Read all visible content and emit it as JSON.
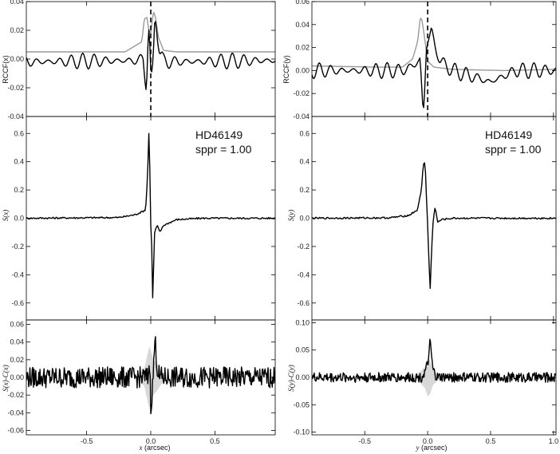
{
  "figure": {
    "left": {
      "target": "HD46149",
      "sppr": "sppr = 1.00",
      "x_label_var": "x",
      "x_label_unit": "(arcsec)",
      "x_ticks": [
        "-0.5",
        "0.0",
        "0.5"
      ],
      "top_ylabel": "RCCF(x)",
      "mid_ylabel": "S(x)",
      "bot_ylabel": "S(x)-C(x)"
    },
    "right": {
      "target": "HD46149",
      "sppr": "sppr = 1.00",
      "x_label_var": "y",
      "x_label_unit": "(arcsec)",
      "x_ticks": [
        "-0.5",
        "0.0",
        "0.5",
        "1.0"
      ],
      "top_ylabel": "RCCF(y)",
      "mid_ylabel": "S(y)",
      "bot_ylabel": "S(y)-C(y)"
    }
  },
  "chart_data": [
    {
      "id": "left-top",
      "type": "line",
      "ylabel": "RCCF(x)",
      "xlim": [
        -0.97,
        0.97
      ],
      "ylim": [
        -0.04,
        0.04
      ],
      "yticks": [
        "0.04",
        "0.02",
        "0.00",
        "-0.02",
        "-0.04"
      ],
      "vline_x": 0.0,
      "series": [
        {
          "color": "#999999",
          "shape": [
            [
              -0.97,
              0.005
            ],
            [
              -0.35,
              0.005
            ],
            [
              -0.2,
              0.005
            ],
            [
              -0.07,
              0.012
            ],
            [
              -0.05,
              0.028
            ],
            [
              -0.03,
              0.029
            ],
            [
              -0.015,
              0.02
            ],
            [
              0.0,
              0.018
            ],
            [
              0.02,
              0.033
            ],
            [
              0.035,
              0.03
            ],
            [
              0.06,
              0.015
            ],
            [
              0.1,
              0.006
            ],
            [
              0.2,
              0.005
            ],
            [
              0.97,
              0.005
            ]
          ]
        },
        {
          "color": "#000000",
          "shape": [
            [
              -0.97,
              -0.002
            ],
            [
              -0.1,
              -0.001
            ],
            [
              -0.06,
              0.0
            ],
            [
              -0.045,
              -0.012
            ],
            [
              -0.035,
              -0.018
            ],
            [
              -0.03,
              -0.008
            ],
            [
              -0.02,
              0.018
            ],
            [
              -0.012,
              0.022
            ],
            [
              -0.005,
              0.0
            ],
            [
              0.0,
              -0.012
            ],
            [
              0.01,
              -0.015
            ],
            [
              0.02,
              0.0
            ],
            [
              0.03,
              0.025
            ],
            [
              0.04,
              0.03
            ],
            [
              0.05,
              0.02
            ],
            [
              0.07,
              0.005
            ],
            [
              0.1,
              -0.002
            ],
            [
              0.97,
              -0.001
            ]
          ]
        }
      ]
    },
    {
      "id": "left-mid",
      "type": "line",
      "ylabel": "S(x)",
      "xlim": [
        -0.97,
        0.97
      ],
      "ylim": [
        -0.72,
        0.72
      ],
      "yticks": [
        "0.6",
        "0.4",
        "0.2",
        "0.0",
        "-0.2",
        "-0.4",
        "-0.6"
      ],
      "series": [
        {
          "color": "#000000",
          "shape": [
            [
              -0.97,
              0.0
            ],
            [
              -0.25,
              0.005
            ],
            [
              -0.12,
              0.025
            ],
            [
              -0.06,
              0.05
            ],
            [
              -0.04,
              0.06
            ],
            [
              -0.025,
              0.3
            ],
            [
              -0.015,
              0.6
            ],
            [
              -0.008,
              0.4
            ],
            [
              -0.003,
              0.0
            ],
            [
              0.0,
              -0.05
            ],
            [
              0.01,
              -0.25
            ],
            [
              0.015,
              -0.57
            ],
            [
              0.022,
              -0.35
            ],
            [
              0.03,
              -0.1
            ],
            [
              0.05,
              -0.05
            ],
            [
              0.07,
              -0.1
            ],
            [
              0.1,
              -0.05
            ],
            [
              0.2,
              -0.01
            ],
            [
              0.4,
              0.0
            ],
            [
              0.97,
              0.0
            ]
          ]
        }
      ]
    },
    {
      "id": "left-bot",
      "type": "line",
      "ylabel": "S(x)-C(x)",
      "xlim": [
        -0.97,
        0.97
      ],
      "ylim": [
        -0.065,
        0.065
      ],
      "yticks": [
        "0.06",
        "0.04",
        "0.02",
        "0.00",
        "-0.02",
        "-0.04",
        "-0.06"
      ],
      "band": {
        "color": "#d8d8d8",
        "shape": [
          [
            -0.1,
            0.003
          ],
          [
            -0.05,
            0.01
          ],
          [
            -0.02,
            0.03
          ],
          [
            -0.01,
            0.035
          ],
          [
            0.0,
            0.03
          ],
          [
            0.02,
            0.02
          ],
          [
            0.05,
            0.015
          ],
          [
            0.08,
            0.008
          ],
          [
            0.12,
            0.003
          ]
        ]
      },
      "noise_amp": 0.012,
      "series": [
        {
          "color": "#000000",
          "shape": [
            [
              -0.97,
              0.0
            ],
            [
              -0.02,
              0.0
            ],
            [
              -0.01,
              0.02
            ],
            [
              0.0,
              -0.03
            ],
            [
              0.01,
              -0.02
            ],
            [
              0.02,
              0.005
            ],
            [
              0.03,
              0.04
            ],
            [
              0.04,
              0.035
            ],
            [
              0.05,
              0.01
            ],
            [
              0.07,
              0.0
            ],
            [
              0.97,
              0.0
            ]
          ]
        }
      ]
    },
    {
      "id": "right-top",
      "type": "line",
      "ylabel": "RCCF(y)",
      "xlim": [
        -0.92,
        1.02
      ],
      "ylim": [
        -0.04,
        0.06
      ],
      "yticks": [
        "0.06",
        "0.04",
        "0.02",
        "0.00",
        "-0.02",
        "-0.04"
      ],
      "vline_x": 0.0,
      "series": [
        {
          "color": "#999999",
          "shape": [
            [
              -0.92,
              0.004
            ],
            [
              -0.4,
              0.003
            ],
            [
              -0.2,
              0.003
            ],
            [
              -0.12,
              0.01
            ],
            [
              -0.08,
              0.025
            ],
            [
              -0.06,
              0.045
            ],
            [
              -0.05,
              0.046
            ],
            [
              -0.04,
              0.04
            ],
            [
              -0.02,
              0.025
            ],
            [
              0.0,
              0.008
            ],
            [
              0.05,
              0.003
            ],
            [
              0.2,
              0.001
            ],
            [
              0.6,
              0.0
            ],
            [
              1.02,
              0.001
            ]
          ]
        },
        {
          "color": "#000000",
          "shape": [
            [
              -0.92,
              0.0
            ],
            [
              -0.2,
              0.0
            ],
            [
              -0.1,
              0.005
            ],
            [
              -0.06,
              0.01
            ],
            [
              -0.04,
              -0.03
            ],
            [
              -0.03,
              -0.033
            ],
            [
              -0.01,
              0.02
            ],
            [
              0.0,
              0.025
            ],
            [
              0.015,
              0.03
            ],
            [
              0.03,
              0.036
            ],
            [
              0.06,
              0.02
            ],
            [
              0.1,
              0.008
            ],
            [
              0.2,
              0.0
            ],
            [
              0.5,
              -0.01
            ],
            [
              0.7,
              0.0
            ],
            [
              1.02,
              0.0
            ]
          ]
        }
      ]
    },
    {
      "id": "right-mid",
      "type": "line",
      "ylabel": "S(y)",
      "xlim": [
        -0.92,
        1.02
      ],
      "ylim": [
        -0.72,
        0.72
      ],
      "yticks": [
        "0.6",
        "0.4",
        "0.2",
        "0.0",
        "-0.2",
        "-0.4",
        "-0.6"
      ],
      "series": [
        {
          "color": "#000000",
          "shape": [
            [
              -0.92,
              0.0
            ],
            [
              -0.3,
              0.003
            ],
            [
              -0.15,
              0.02
            ],
            [
              -0.08,
              0.06
            ],
            [
              -0.05,
              0.2
            ],
            [
              -0.035,
              0.38
            ],
            [
              -0.025,
              0.4
            ],
            [
              -0.015,
              0.3
            ],
            [
              -0.008,
              0.1
            ],
            [
              0.0,
              -0.05
            ],
            [
              0.01,
              -0.3
            ],
            [
              0.02,
              -0.5
            ],
            [
              0.03,
              -0.25
            ],
            [
              0.045,
              0.0
            ],
            [
              0.06,
              0.08
            ],
            [
              0.08,
              -0.03
            ],
            [
              0.11,
              -0.01
            ],
            [
              0.2,
              0.0
            ],
            [
              1.02,
              0.0
            ]
          ]
        }
      ]
    },
    {
      "id": "right-bot",
      "type": "line",
      "ylabel": "S(y)-C(y)",
      "xlim": [
        -0.92,
        1.02
      ],
      "ylim": [
        -0.105,
        0.105
      ],
      "yticks": [
        "0.10",
        "0.05",
        "0.00",
        "-0.05",
        "-0.10"
      ],
      "band": {
        "color": "#d8d8d8",
        "shape": [
          [
            -0.12,
            0.002
          ],
          [
            -0.06,
            0.01
          ],
          [
            -0.02,
            0.02
          ],
          [
            0.0,
            0.035
          ],
          [
            0.02,
            0.03
          ],
          [
            0.04,
            0.015
          ],
          [
            0.08,
            0.005
          ],
          [
            0.12,
            0.002
          ]
        ]
      },
      "noise_amp": 0.009,
      "series": [
        {
          "color": "#000000",
          "shape": [
            [
              -0.92,
              0.0
            ],
            [
              -0.05,
              0.0
            ],
            [
              -0.02,
              0.01
            ],
            [
              0.0,
              0.025
            ],
            [
              0.01,
              0.035
            ],
            [
              0.02,
              0.07
            ],
            [
              0.03,
              0.04
            ],
            [
              0.04,
              0.015
            ],
            [
              0.07,
              0.0
            ],
            [
              1.02,
              0.0
            ]
          ]
        }
      ]
    }
  ]
}
